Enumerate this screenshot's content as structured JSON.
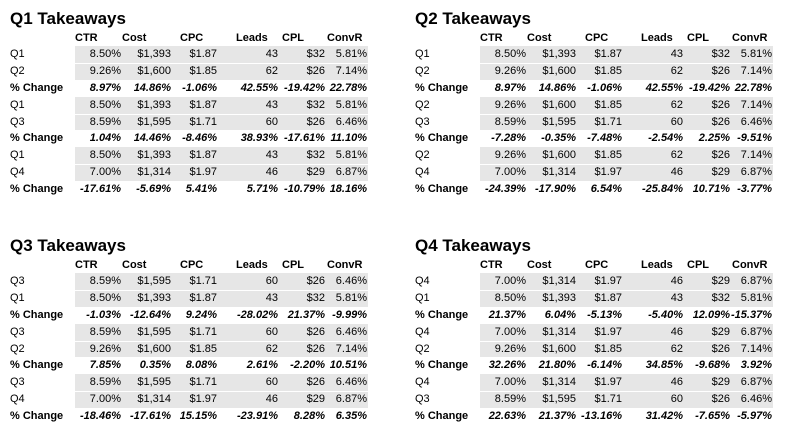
{
  "columns": [
    "CTR",
    "Cost",
    "CPC",
    "Leads",
    "CPL",
    "ConvR"
  ],
  "panels": [
    {
      "title": "Q1 Takeaways",
      "groups": [
        {
          "rows": [
            [
              "Q1",
              "8.50%",
              "$1,393",
              "$1.87",
              "43",
              "$32",
              "5.81%"
            ],
            [
              "Q2",
              "9.26%",
              "$1,600",
              "$1.85",
              "62",
              "$26",
              "7.14%"
            ]
          ],
          "change": [
            "% Change",
            "8.97%",
            "14.86%",
            "-1.06%",
            "42.55%",
            "-19.42%",
            "22.78%"
          ]
        },
        {
          "rows": [
            [
              "Q1",
              "8.50%",
              "$1,393",
              "$1.87",
              "43",
              "$32",
              "5.81%"
            ],
            [
              "Q3",
              "8.59%",
              "$1,595",
              "$1.71",
              "60",
              "$26",
              "6.46%"
            ]
          ],
          "change": [
            "% Change",
            "1.04%",
            "14.46%",
            "-8.46%",
            "38.93%",
            "-17.61%",
            "11.10%"
          ]
        },
        {
          "rows": [
            [
              "Q1",
              "8.50%",
              "$1,393",
              "$1.87",
              "43",
              "$32",
              "5.81%"
            ],
            [
              "Q4",
              "7.00%",
              "$1,314",
              "$1.97",
              "46",
              "$29",
              "6.87%"
            ]
          ],
          "change": [
            "% Change",
            "-17.61%",
            "-5.69%",
            "5.41%",
            "5.71%",
            "-10.79%",
            "18.16%"
          ]
        }
      ]
    },
    {
      "title": "Q2 Takeaways",
      "groups": [
        {
          "rows": [
            [
              "Q1",
              "8.50%",
              "$1,393",
              "$1.87",
              "43",
              "$32",
              "5.81%"
            ],
            [
              "Q2",
              "9.26%",
              "$1,600",
              "$1.85",
              "62",
              "$26",
              "7.14%"
            ]
          ],
          "change": [
            "% Change",
            "8.97%",
            "14.86%",
            "-1.06%",
            "42.55%",
            "-19.42%",
            "22.78%"
          ]
        },
        {
          "rows": [
            [
              "Q2",
              "9.26%",
              "$1,600",
              "$1.85",
              "62",
              "$26",
              "7.14%"
            ],
            [
              "Q3",
              "8.59%",
              "$1,595",
              "$1.71",
              "60",
              "$26",
              "6.46%"
            ]
          ],
          "change": [
            "% Change",
            "-7.28%",
            "-0.35%",
            "-7.48%",
            "-2.54%",
            "2.25%",
            "-9.51%"
          ]
        },
        {
          "rows": [
            [
              "Q2",
              "9.26%",
              "$1,600",
              "$1.85",
              "62",
              "$26",
              "7.14%"
            ],
            [
              "Q4",
              "7.00%",
              "$1,314",
              "$1.97",
              "46",
              "$29",
              "6.87%"
            ]
          ],
          "change": [
            "% Change",
            "-24.39%",
            "-17.90%",
            "6.54%",
            "-25.84%",
            "10.71%",
            "-3.77%"
          ]
        }
      ]
    },
    {
      "title": "Q3 Takeaways",
      "groups": [
        {
          "rows": [
            [
              "Q3",
              "8.59%",
              "$1,595",
              "$1.71",
              "60",
              "$26",
              "6.46%"
            ],
            [
              "Q1",
              "8.50%",
              "$1,393",
              "$1.87",
              "43",
              "$32",
              "5.81%"
            ]
          ],
          "change": [
            "% Change",
            "-1.03%",
            "-12.64%",
            "9.24%",
            "-28.02%",
            "21.37%",
            "-9.99%"
          ]
        },
        {
          "rows": [
            [
              "Q3",
              "8.59%",
              "$1,595",
              "$1.71",
              "60",
              "$26",
              "6.46%"
            ],
            [
              "Q2",
              "9.26%",
              "$1,600",
              "$1.85",
              "62",
              "$26",
              "7.14%"
            ]
          ],
          "change": [
            "% Change",
            "7.85%",
            "0.35%",
            "8.08%",
            "2.61%",
            "-2.20%",
            "10.51%"
          ]
        },
        {
          "rows": [
            [
              "Q3",
              "8.59%",
              "$1,595",
              "$1.71",
              "60",
              "$26",
              "6.46%"
            ],
            [
              "Q4",
              "7.00%",
              "$1,314",
              "$1.97",
              "46",
              "$29",
              "6.87%"
            ]
          ],
          "change": [
            "% Change",
            "-18.46%",
            "-17.61%",
            "15.15%",
            "-23.91%",
            "8.28%",
            "6.35%"
          ]
        }
      ]
    },
    {
      "title": "Q4 Takeaways",
      "groups": [
        {
          "rows": [
            [
              "Q4",
              "7.00%",
              "$1,314",
              "$1.97",
              "46",
              "$29",
              "6.87%"
            ],
            [
              "Q1",
              "8.50%",
              "$1,393",
              "$1.87",
              "43",
              "$32",
              "5.81%"
            ]
          ],
          "change": [
            "% Change",
            "21.37%",
            "6.04%",
            "-5.13%",
            "-5.40%",
            "12.09%",
            "-15.37%"
          ]
        },
        {
          "rows": [
            [
              "Q4",
              "7.00%",
              "$1,314",
              "$1.97",
              "46",
              "$29",
              "6.87%"
            ],
            [
              "Q2",
              "9.26%",
              "$1,600",
              "$1.85",
              "62",
              "$26",
              "7.14%"
            ]
          ],
          "change": [
            "% Change",
            "32.26%",
            "21.80%",
            "-6.14%",
            "34.85%",
            "-9.68%",
            "3.92%"
          ]
        },
        {
          "rows": [
            [
              "Q4",
              "7.00%",
              "$1,314",
              "$1.97",
              "46",
              "$29",
              "6.87%"
            ],
            [
              "Q3",
              "8.59%",
              "$1,595",
              "$1.71",
              "60",
              "$26",
              "6.46%"
            ]
          ],
          "change": [
            "% Change",
            "22.63%",
            "21.37%",
            "-13.16%",
            "31.42%",
            "-7.65%",
            "-5.97%"
          ]
        }
      ]
    }
  ]
}
